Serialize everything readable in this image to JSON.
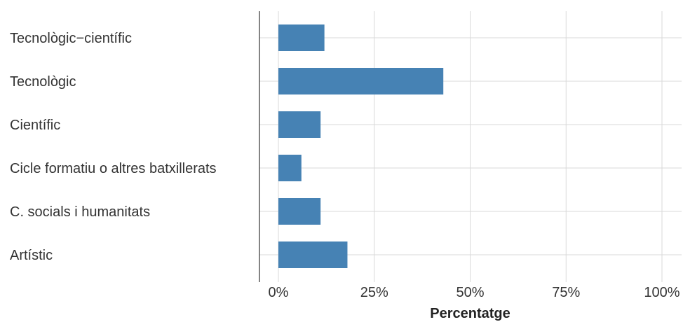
{
  "chart_data": {
    "type": "bar",
    "orientation": "horizontal",
    "categories": [
      "Tecnològic−científic",
      "Tecnològic",
      "Científic",
      "Cicle formatiu o altres batxillerats",
      "C. socials i humanitats",
      "Artístic"
    ],
    "values": [
      12,
      43,
      11,
      6,
      11,
      18
    ],
    "xlabel": "Percentatge",
    "ylabel": "",
    "xlim": [
      0,
      100
    ],
    "x_ticks": [
      0,
      25,
      50,
      75,
      100
    ],
    "x_tick_labels": [
      "0%",
      "25%",
      "50%",
      "75%",
      "100%"
    ],
    "grid": true,
    "bar_color": "#4682B4",
    "grid_color": "#d9d9d9",
    "axis_color": "#333333"
  }
}
